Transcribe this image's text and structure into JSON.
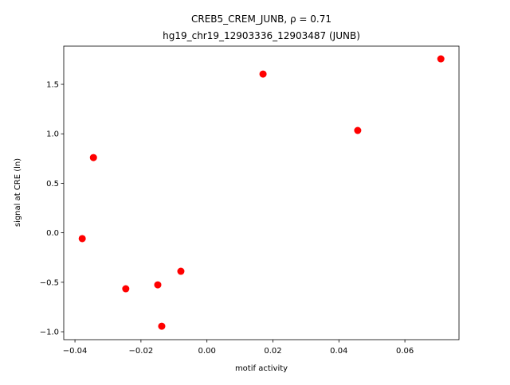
{
  "chart_data": {
    "type": "scatter",
    "title": "CREB5_CREM_JUNB, ρ = 0.71",
    "subtitle": "hg19_chr19_12903336_12903487 (JUNB)",
    "x_label": "motif activity",
    "y_label": "signal at CRE (ln)",
    "color": "#ff0000",
    "x": [
      0.0709,
      0.017,
      0.0457,
      -0.0344,
      -0.0378,
      -0.0079,
      -0.0149,
      -0.0246,
      -0.0137
    ],
    "values": [
      1.757,
      1.604,
      1.034,
      0.76,
      -0.059,
      -0.389,
      -0.526,
      -0.566,
      -0.944
    ],
    "xlim": [
      -0.0434,
      0.0764
    ],
    "ylim": [
      -1.08,
      1.886
    ],
    "xticks": [
      {
        "value": -0.04,
        "label": "−0.04"
      },
      {
        "value": -0.02,
        "label": "−0.02"
      },
      {
        "value": 0,
        "label": "0.00"
      },
      0.02,
      0.04,
      0.06
    ],
    "yticks": [
      {
        "value": -1,
        "label": "−1.0"
      },
      {
        "value": -0.5,
        "label": "−0.5"
      },
      {
        "value": 0,
        "label": "0.0"
      },
      0.5,
      {
        "value": 1,
        "label": "1.0"
      },
      1.5
    ]
  }
}
